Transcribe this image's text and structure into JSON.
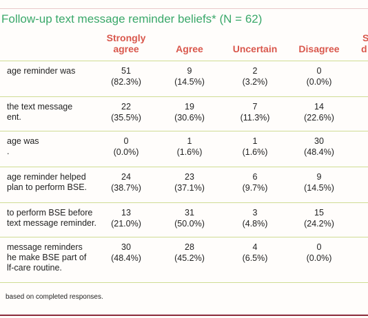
{
  "title": "Follow-up text message reminder beliefs* (N = 62)",
  "header": {
    "columns": [
      [
        "Strongly",
        "agree"
      ],
      [
        "Agree"
      ],
      [
        "Uncertain"
      ],
      [
        "Disagree"
      ]
    ],
    "cropped": [
      "S",
      "d"
    ]
  },
  "rows": [
    {
      "label": [
        "age reminder was"
      ],
      "cells": [
        [
          "51",
          "(82.3%)"
        ],
        [
          "9",
          "(14.5%)"
        ],
        [
          "2",
          "(3.2%)"
        ],
        [
          "0",
          "(0.0%)"
        ]
      ]
    },
    {
      "label": [
        "the text message",
        "ent."
      ],
      "cells": [
        [
          "22",
          "(35.5%)"
        ],
        [
          "19",
          "(30.6%)"
        ],
        [
          "7",
          "(11.3%)"
        ],
        [
          "14",
          "(22.6%)"
        ]
      ]
    },
    {
      "label": [
        "age was",
        "."
      ],
      "cells": [
        [
          "0",
          "(0.0%)"
        ],
        [
          "1",
          "(1.6%)"
        ],
        [
          "1",
          "(1.6%)"
        ],
        [
          "30",
          "(48.4%)"
        ]
      ]
    },
    {
      "label": [
        "age reminder helped",
        "plan to perform BSE."
      ],
      "cells": [
        [
          "24",
          "(38.7%)"
        ],
        [
          "23",
          "(37.1%)"
        ],
        [
          "6",
          "(9.7%)"
        ],
        [
          "9",
          "(14.5%)"
        ]
      ]
    },
    {
      "label": [
        "to perform BSE before",
        "text message reminder."
      ],
      "cells": [
        [
          "13",
          "(21.0%)"
        ],
        [
          "31",
          "(50.0%)"
        ],
        [
          "3",
          "(4.8%)"
        ],
        [
          "15",
          "(24.2%)"
        ]
      ]
    },
    {
      "label": [
        "message reminders",
        "he make BSE part of",
        "lf-care routine."
      ],
      "cells": [
        [
          "30",
          "(48.4%)"
        ],
        [
          "28",
          "(45.2%)"
        ],
        [
          "4",
          "(6.5%)"
        ],
        [
          "0",
          "(0.0%)"
        ]
      ]
    }
  ],
  "footnote": "based on completed responses."
}
